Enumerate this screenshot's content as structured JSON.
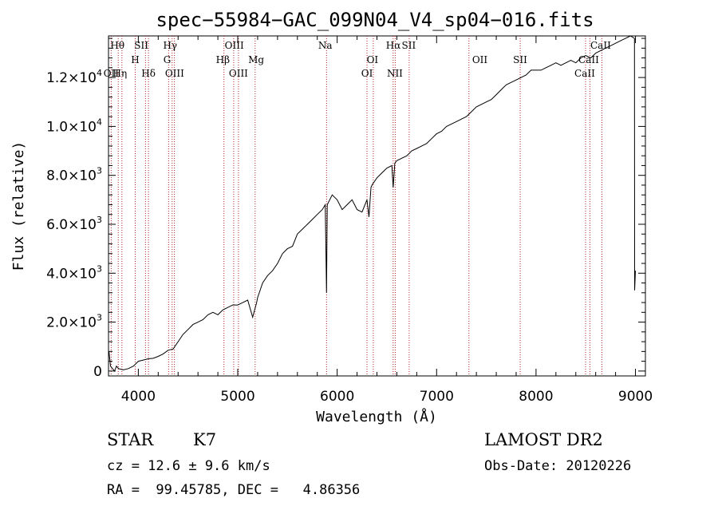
{
  "chart_data": {
    "type": "line",
    "title": "spec−55984−GAC_099N04_V4_sp04−016.fits",
    "xlabel": "Wavelength (Å)",
    "ylabel": "Flux (relative)",
    "xlim": [
      3700,
      9100
    ],
    "ylim": [
      -200,
      13700
    ],
    "x_ticks": [
      4000,
      5000,
      6000,
      7000,
      8000,
      9000
    ],
    "x_tick_labels": [
      "4000",
      "5000",
      "6000",
      "7000",
      "8000",
      "9000"
    ],
    "y_ticks": [
      0,
      2000,
      4000,
      6000,
      8000,
      10000,
      12000
    ],
    "y_tick_labels": [
      {
        "mantissa": "0",
        "exp": ""
      },
      {
        "mantissa": "2.0×10",
        "exp": "3"
      },
      {
        "mantissa": "4.0×10",
        "exp": "3"
      },
      {
        "mantissa": "6.0×10",
        "exp": "3"
      },
      {
        "mantissa": "8.0×10",
        "exp": "3"
      },
      {
        "mantissa": "1.0×10",
        "exp": "4"
      },
      {
        "mantissa": "1.2×10",
        "exp": "4"
      }
    ],
    "series": [
      {
        "name": "spectrum",
        "x": [
          3705,
          3720,
          3740,
          3760,
          3780,
          3800,
          3850,
          3900,
          3950,
          4000,
          4050,
          4100,
          4150,
          4200,
          4250,
          4300,
          4350,
          4400,
          4450,
          4500,
          4550,
          4600,
          4650,
          4700,
          4750,
          4800,
          4850,
          4900,
          4950,
          5000,
          5050,
          5100,
          5150,
          5170,
          5190,
          5200,
          5250,
          5300,
          5350,
          5400,
          5450,
          5500,
          5550,
          5600,
          5650,
          5700,
          5750,
          5800,
          5850,
          5880,
          5893,
          5900,
          5950,
          6000,
          6050,
          6100,
          6150,
          6200,
          6250,
          6300,
          6320,
          6340,
          6350,
          6400,
          6450,
          6500,
          6550,
          6563,
          6580,
          6600,
          6650,
          6700,
          6750,
          6800,
          6850,
          6900,
          6950,
          7000,
          7050,
          7100,
          7150,
          7200,
          7250,
          7300,
          7350,
          7400,
          7450,
          7500,
          7550,
          7600,
          7650,
          7700,
          7750,
          7800,
          7850,
          7900,
          7950,
          8000,
          8050,
          8100,
          8150,
          8200,
          8250,
          8300,
          8350,
          8400,
          8450,
          8500,
          8550,
          8600,
          8650,
          8700,
          8750,
          8800,
          8850,
          8900,
          8950,
          8990,
          8992,
          9000
        ],
        "y": [
          800,
          200,
          100,
          0,
          200,
          100,
          50,
          100,
          200,
          400,
          450,
          500,
          520,
          600,
          700,
          850,
          900,
          1200,
          1500,
          1700,
          1900,
          2000,
          2100,
          2300,
          2400,
          2300,
          2500,
          2600,
          2700,
          2700,
          2800,
          2900,
          2200,
          2500,
          2800,
          3000,
          3600,
          3900,
          4100,
          4400,
          4800,
          5000,
          5100,
          5600,
          5800,
          6000,
          6200,
          6400,
          6600,
          6800,
          3200,
          6800,
          7200,
          7000,
          6600,
          6800,
          7000,
          6600,
          6500,
          7000,
          6300,
          7500,
          7600,
          7900,
          8100,
          8300,
          8400,
          7500,
          8500,
          8600,
          8700,
          8800,
          9000,
          9100,
          9200,
          9300,
          9500,
          9700,
          9800,
          10000,
          10100,
          10200,
          10300,
          10400,
          10600,
          10800,
          10900,
          11000,
          11100,
          11300,
          11500,
          11700,
          11800,
          11900,
          12000,
          12100,
          12300,
          12300,
          12300,
          12400,
          12500,
          12600,
          12500,
          12600,
          12700,
          12600,
          12800,
          12900,
          12800,
          13000,
          13100,
          13200,
          13300,
          13400,
          13500,
          13600,
          13700,
          13600,
          3300,
          4100
        ]
      }
    ],
    "spectral_lines": [
      {
        "label": "Hθ",
        "x": 3798,
        "row": 0,
        "lx": 3790
      },
      {
        "label": "OII",
        "x": 3727,
        "row": 2,
        "lx": 3727
      },
      {
        "label": "Hη",
        "x": 3835,
        "row": 2,
        "lx": 3815
      },
      {
        "label": "H",
        "x": 3969,
        "row": 1,
        "lx": 3969
      },
      {
        "label": "SII",
        "x": 4072,
        "row": 0,
        "lx": 4030
      },
      {
        "label": "Hδ",
        "x": 4102,
        "row": 2,
        "lx": 4102
      },
      {
        "label": "Hγ",
        "x": 4340,
        "row": 0,
        "lx": 4320
      },
      {
        "label": "G",
        "x": 4305,
        "row": 1,
        "lx": 4290
      },
      {
        "label": "OIII",
        "x": 4363,
        "row": 2,
        "lx": 4365
      },
      {
        "label": "OIII",
        "x": 4959,
        "row": 0,
        "lx": 4965
      },
      {
        "label": "Hβ",
        "x": 4861,
        "row": 1,
        "lx": 4850
      },
      {
        "label": "OIII",
        "x": 5007,
        "row": 2,
        "lx": 5007
      },
      {
        "label": "Mg",
        "x": 5175,
        "row": 1,
        "lx": 5185
      },
      {
        "label": "Na",
        "x": 5893,
        "row": 0,
        "lx": 5880
      },
      {
        "label": "OI",
        "x": 6300,
        "row": 2,
        "lx": 6300
      },
      {
        "label": "OI",
        "x": 6363,
        "row": 1,
        "lx": 6355
      },
      {
        "label": "Hα",
        "x": 6563,
        "row": 0,
        "lx": 6565
      },
      {
        "label": "SII",
        "x": 6724,
        "row": 0,
        "lx": 6720
      },
      {
        "label": "NII",
        "x": 6584,
        "row": 2,
        "lx": 6580
      },
      {
        "label": "OII",
        "x": 7325,
        "row": 1,
        "lx": 7435
      },
      {
        "label": "SII",
        "x": 7841,
        "row": 1,
        "lx": 7840
      },
      {
        "label": "CaII",
        "x": 8498,
        "row": 2,
        "lx": 8490
      },
      {
        "label": "CaII",
        "x": 8542,
        "row": 1,
        "lx": 8530
      },
      {
        "label": "CaII",
        "x": 8662,
        "row": 0,
        "lx": 8650
      }
    ]
  },
  "info": {
    "obj_class": "STAR",
    "subclass": "K7",
    "survey": "LAMOST DR2",
    "redshift": "cz = 12.6 ± 9.6 km/s",
    "obs_date": "Obs-Date: 20120226",
    "coords": "RA =  99.45785, DEC =   4.86356"
  }
}
